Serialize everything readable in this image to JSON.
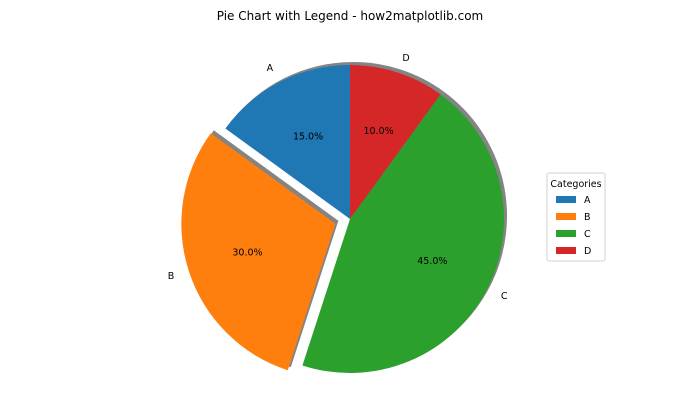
{
  "chart_data": {
    "type": "pie",
    "title": "Pie Chart with Legend - how2matplotlib.com",
    "categories": [
      "A",
      "B",
      "C",
      "D"
    ],
    "values": [
      15,
      30,
      45,
      10
    ],
    "percent_labels": [
      "15.0%",
      "30.0%",
      "45.0%",
      "10.0%"
    ],
    "colors": [
      "#1f77b4",
      "#ff7f0e",
      "#2ca02c",
      "#d62728"
    ],
    "exploded": [
      "B"
    ],
    "start_angle_deg": 90,
    "direction": "counterclockwise",
    "shadow": true,
    "legend": {
      "title": "Categories",
      "placement": "center-right",
      "entries": [
        "A",
        "B",
        "C",
        "D"
      ]
    }
  }
}
